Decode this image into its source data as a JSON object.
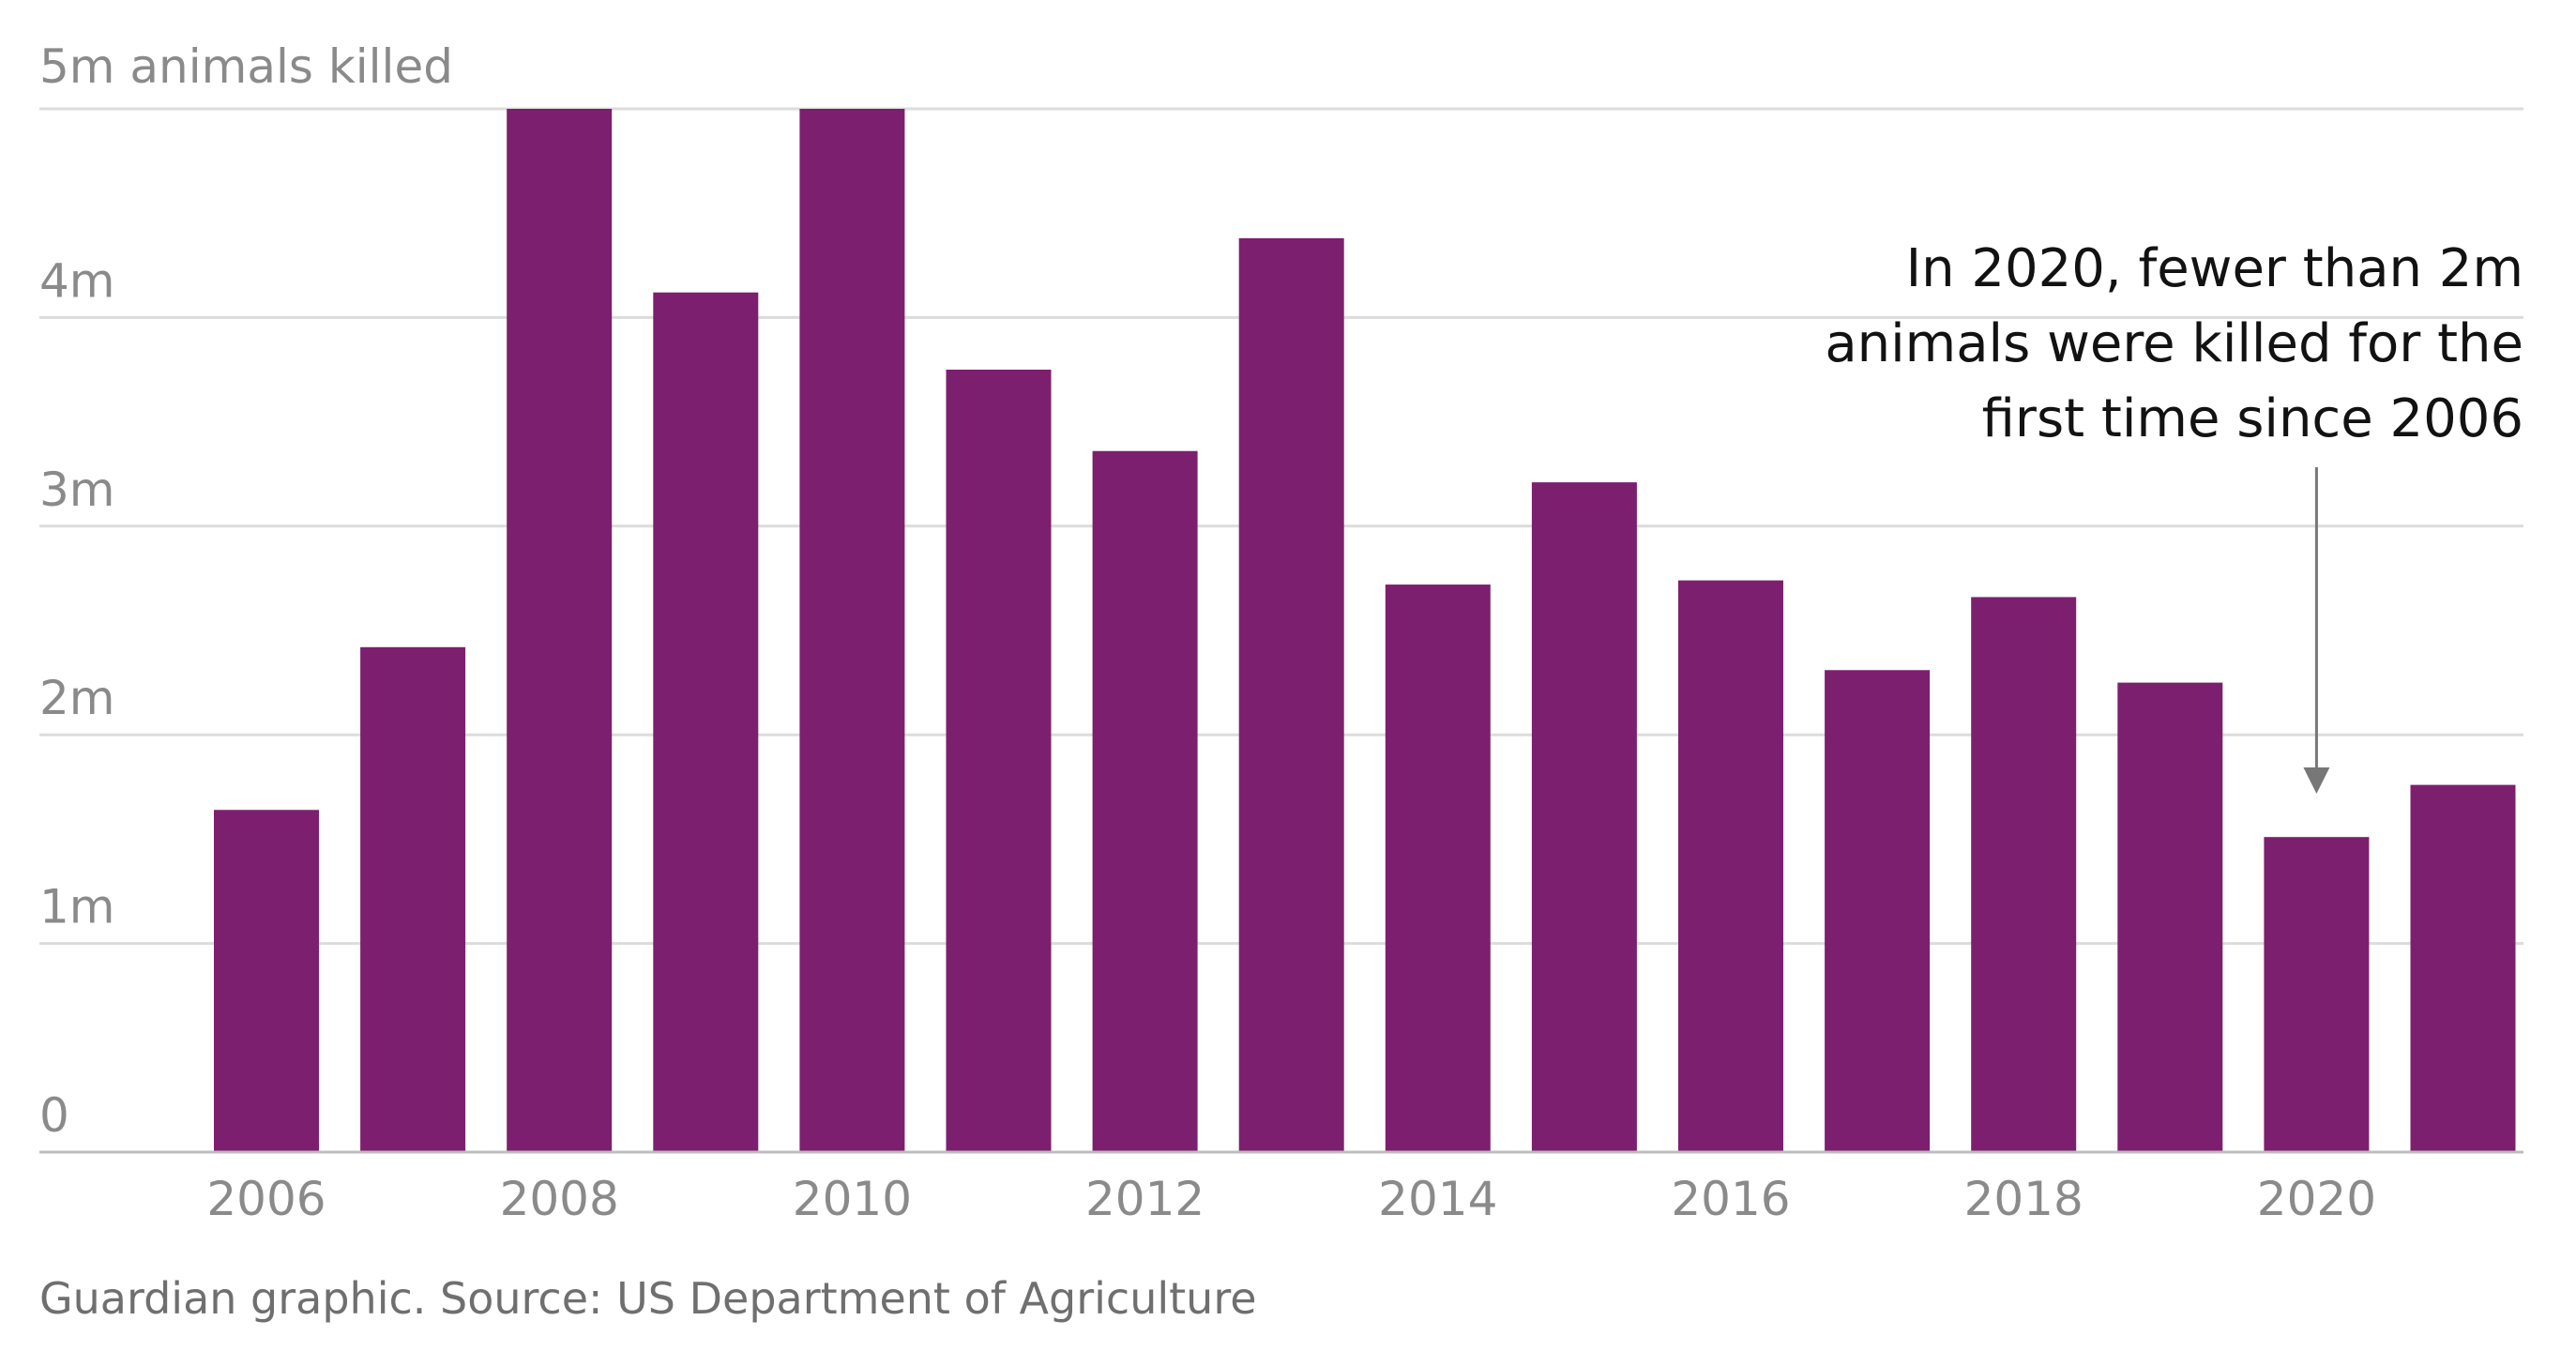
{
  "chart_data": {
    "type": "bar",
    "title": "",
    "ylabel": "5m animals killed",
    "xlabel": "",
    "categories": [
      "2006",
      "2007",
      "2008",
      "2009",
      "2010",
      "2011",
      "2012",
      "2013",
      "2014",
      "2015",
      "2016",
      "2017",
      "2018",
      "2019",
      "2020",
      "2021"
    ],
    "values": [
      1.64,
      2.42,
      5.0,
      4.12,
      5.0,
      3.75,
      3.36,
      4.38,
      2.72,
      3.21,
      2.74,
      2.31,
      2.66,
      2.25,
      1.51,
      1.76
    ],
    "ylim": [
      0,
      5
    ],
    "y_ticks": [
      "0",
      "1m",
      "2m",
      "3m",
      "4m"
    ],
    "x_tick_labels": [
      "2006",
      "2008",
      "2010",
      "2012",
      "2014",
      "2016",
      "2018",
      "2020"
    ],
    "bar_color": "#7d1f6f",
    "grid": true,
    "annotation": {
      "lines": [
        "In 2020, fewer than 2m",
        "animals were killed for the",
        "first time since 2006"
      ],
      "target_category": "2020"
    },
    "source": "Guardian graphic. Source: US Department of Agriculture"
  }
}
